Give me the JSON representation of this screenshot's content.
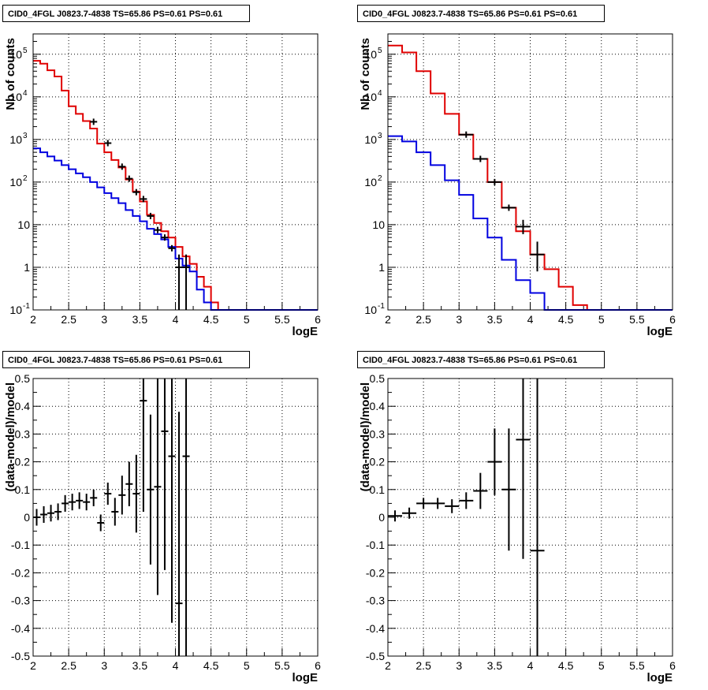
{
  "panel_title": "CID0_4FGL J0823.7-4838 TS=65.86 PS=0.61 PS=0.61",
  "colors": {
    "data": "#000000",
    "total_model": "#e00000",
    "source_model": "#0000e0",
    "grid": "#000000"
  },
  "chart_data": [
    {
      "type": "line",
      "title": "CID0_4FGL J0823.7-4838 TS=65.86 PS=0.61 PS=0.61",
      "xlabel": "logE",
      "ylabel": "Nb of counts",
      "xlim": [
        2,
        6
      ],
      "ylim": [
        0.1,
        300000
      ],
      "yscale": "log",
      "grid": true,
      "xticks": [
        "2",
        "2.5",
        "3",
        "3.5",
        "4",
        "4.5",
        "5",
        "5.5",
        "6"
      ],
      "yticks": [
        "10^-1",
        "1",
        "10",
        "10^2",
        "10^3",
        "10^4",
        "10^5"
      ],
      "bin_edges": [
        2.0,
        2.1,
        2.2,
        2.3,
        2.4,
        2.5,
        2.6,
        2.7,
        2.8,
        2.9,
        3.0,
        3.1,
        3.2,
        3.3,
        3.4,
        3.5,
        3.6,
        3.7,
        3.8,
        3.9,
        4.0,
        4.1,
        4.2,
        4.3,
        4.4,
        4.5,
        4.6,
        4.7,
        4.8,
        4.9,
        5.0,
        5.1,
        5.2,
        5.3,
        5.4,
        5.5,
        5.6,
        5.7,
        5.8,
        5.9,
        6.0
      ],
      "series": [
        {
          "role": "total",
          "values": [
            70000,
            60000,
            42000,
            30000,
            14000,
            6000,
            4000,
            2700,
            1800,
            800,
            500,
            330,
            220,
            115,
            60,
            35,
            17,
            11,
            7,
            5,
            3,
            1.8,
            1.2,
            0.6,
            0.35,
            0.15,
            0.1,
            0.1,
            0.1,
            0.1,
            0.1,
            0.1,
            0.1,
            0.1,
            0.1,
            0.1,
            0.1,
            0.1,
            0.1,
            0.1
          ]
        },
        {
          "role": "source",
          "values": [
            620,
            500,
            400,
            320,
            250,
            200,
            160,
            130,
            100,
            75,
            55,
            42,
            32,
            22,
            16,
            12,
            8,
            6,
            4.5,
            3,
            1.6,
            1.1,
            0.8,
            0.3,
            0.15,
            0.1,
            0.1,
            0.1,
            0.1,
            0.1,
            0.1,
            0.1,
            0.1,
            0.1,
            0.1,
            0.1,
            0.1,
            0.1,
            0.1,
            0.1
          ]
        }
      ],
      "points": [
        {
          "x": 2.85,
          "y": 2600
        },
        {
          "x": 3.05,
          "y": 820
        },
        {
          "x": 3.25,
          "y": 230
        },
        {
          "x": 3.35,
          "y": 120
        },
        {
          "x": 3.45,
          "y": 58
        },
        {
          "x": 3.55,
          "y": 40
        },
        {
          "x": 3.65,
          "y": 16
        },
        {
          "x": 3.75,
          "y": 7.5
        },
        {
          "x": 3.85,
          "y": 5
        },
        {
          "x": 3.95,
          "y": 2.8
        },
        {
          "x": 4.05,
          "y": 1,
          "ylo": 0.1,
          "yhi": 2
        },
        {
          "x": 4.15,
          "y": 1,
          "ylo": 0.1,
          "yhi": 2
        }
      ]
    },
    {
      "type": "line",
      "title": "CID0_4FGL J0823.7-4838 TS=65.86 PS=0.61 PS=0.61",
      "xlabel": "logE",
      "ylabel": "Nb of counts",
      "xlim": [
        2,
        6
      ],
      "ylim": [
        0.1,
        300000
      ],
      "yscale": "log",
      "grid": true,
      "xticks": [
        "2",
        "2.5",
        "3",
        "3.5",
        "4",
        "4.5",
        "5",
        "5.5",
        "6"
      ],
      "yticks": [
        "10^-1",
        "1",
        "10",
        "10^2",
        "10^3",
        "10^4",
        "10^5"
      ],
      "bin_edges": [
        2.0,
        2.2,
        2.4,
        2.6,
        2.8,
        3.0,
        3.2,
        3.4,
        3.6,
        3.8,
        4.0,
        4.2,
        4.4,
        4.6,
        4.8,
        5.0,
        5.2,
        5.4,
        5.6,
        5.8,
        6.0
      ],
      "series": [
        {
          "role": "total",
          "values": [
            160000,
            110000,
            40000,
            12000,
            4000,
            1300,
            350,
            100,
            25,
            7,
            2,
            0.9,
            0.35,
            0.13,
            0.1,
            0.1,
            0.1,
            0.1,
            0.1,
            0.1
          ]
        },
        {
          "role": "source",
          "values": [
            1200,
            900,
            500,
            250,
            110,
            50,
            14,
            5,
            1.5,
            0.5,
            0.25,
            0.1,
            0.1,
            0.1,
            0.1,
            0.1,
            0.1,
            0.1,
            0.1,
            0.1
          ]
        }
      ],
      "points": [
        {
          "x": 3.1,
          "y": 1300
        },
        {
          "x": 3.3,
          "y": 350
        },
        {
          "x": 3.5,
          "y": 100
        },
        {
          "x": 3.7,
          "y": 25
        },
        {
          "x": 3.9,
          "y": 9,
          "ylo": 6,
          "yhi": 13
        },
        {
          "x": 4.1,
          "y": 2,
          "ylo": 0.8,
          "yhi": 4
        }
      ]
    },
    {
      "type": "scatter",
      "title": "CID0_4FGL J0823.7-4838 TS=65.86 PS=0.61 PS=0.61",
      "xlabel": "logE",
      "ylabel": "(data-model)/model",
      "xlim": [
        2,
        6
      ],
      "ylim": [
        -0.5,
        0.5
      ],
      "grid": true,
      "xticks": [
        "2",
        "2.5",
        "3",
        "3.5",
        "4",
        "4.5",
        "5",
        "5.5",
        "6"
      ],
      "yticks": [
        "-0.5",
        "-0.4",
        "-0.3",
        "-0.2",
        "-0.1",
        "0",
        "0.1",
        "0.2",
        "0.3",
        "0.4",
        "0.5"
      ],
      "xerr": 0.05,
      "points": [
        {
          "x": 2.05,
          "y": 0.0,
          "err": 0.03
        },
        {
          "x": 2.15,
          "y": 0.01,
          "err": 0.03
        },
        {
          "x": 2.25,
          "y": 0.015,
          "err": 0.03
        },
        {
          "x": 2.35,
          "y": 0.02,
          "err": 0.03
        },
        {
          "x": 2.45,
          "y": 0.05,
          "err": 0.03
        },
        {
          "x": 2.55,
          "y": 0.055,
          "err": 0.03
        },
        {
          "x": 2.65,
          "y": 0.06,
          "err": 0.03
        },
        {
          "x": 2.75,
          "y": 0.055,
          "err": 0.03
        },
        {
          "x": 2.85,
          "y": 0.07,
          "err": 0.03
        },
        {
          "x": 2.95,
          "y": -0.02,
          "err": 0.03
        },
        {
          "x": 3.05,
          "y": 0.085,
          "err": 0.04
        },
        {
          "x": 3.15,
          "y": 0.02,
          "err": 0.05
        },
        {
          "x": 3.25,
          "y": 0.08,
          "err": 0.07
        },
        {
          "x": 3.35,
          "y": 0.12,
          "err": 0.08
        },
        {
          "x": 3.45,
          "y": 0.085,
          "err": 0.14
        },
        {
          "x": 3.55,
          "y": 0.42,
          "err": 0.4
        },
        {
          "x": 3.65,
          "y": 0.1,
          "err": 0.27
        },
        {
          "x": 3.75,
          "y": 0.11,
          "err": 0.39
        },
        {
          "x": 3.85,
          "y": 0.31,
          "err": 0.5
        },
        {
          "x": 3.95,
          "y": 0.22,
          "err": 0.6
        },
        {
          "x": 4.05,
          "y": -0.31,
          "err": 0.69
        },
        {
          "x": 4.15,
          "y": 0.22,
          "err": 0.8
        }
      ]
    },
    {
      "type": "scatter",
      "title": "CID0_4FGL J0823.7-4838 TS=65.86 PS=0.61 PS=0.61",
      "xlabel": "logE",
      "ylabel": "(data-model)/model",
      "xlim": [
        2,
        6
      ],
      "ylim": [
        -0.5,
        0.5
      ],
      "grid": true,
      "xticks": [
        "2",
        "2.5",
        "3",
        "3.5",
        "4",
        "4.5",
        "5",
        "5.5",
        "6"
      ],
      "yticks": [
        "-0.5",
        "-0.4",
        "-0.3",
        "-0.2",
        "-0.1",
        "0",
        "0.1",
        "0.2",
        "0.3",
        "0.4",
        "0.5"
      ],
      "xerr": 0.1,
      "points": [
        {
          "x": 2.1,
          "y": 0.005,
          "err": 0.02
        },
        {
          "x": 2.3,
          "y": 0.015,
          "err": 0.02
        },
        {
          "x": 2.5,
          "y": 0.05,
          "err": 0.02
        },
        {
          "x": 2.7,
          "y": 0.05,
          "err": 0.02
        },
        {
          "x": 2.9,
          "y": 0.04,
          "err": 0.025
        },
        {
          "x": 3.1,
          "y": 0.06,
          "err": 0.03
        },
        {
          "x": 3.3,
          "y": 0.095,
          "err": 0.065
        },
        {
          "x": 3.5,
          "y": 0.2,
          "err": 0.12
        },
        {
          "x": 3.7,
          "y": 0.1,
          "err": 0.22
        },
        {
          "x": 3.9,
          "y": 0.28,
          "err": 0.43
        },
        {
          "x": 4.1,
          "y": -0.12,
          "err": 0.62
        }
      ]
    }
  ]
}
